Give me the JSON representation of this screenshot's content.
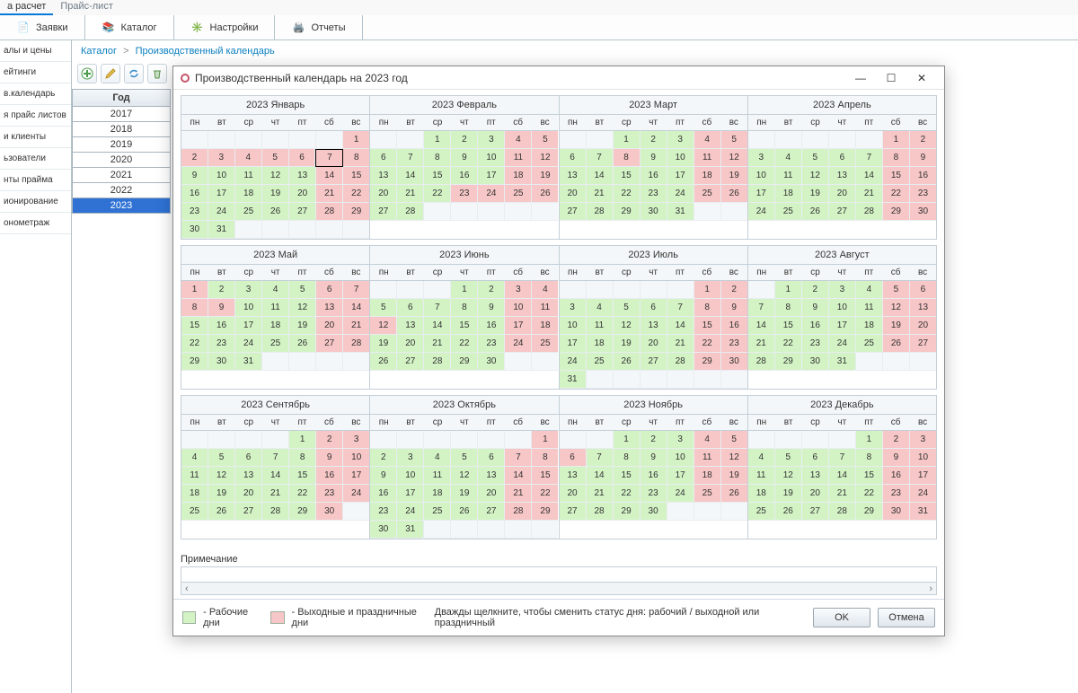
{
  "topTabs": [
    "а расчет",
    "Прайс-лист"
  ],
  "mainTabs": [
    {
      "label": "Заявки",
      "icon": "requests-icon"
    },
    {
      "label": "Каталог",
      "icon": "catalog-icon"
    },
    {
      "label": "Настройки",
      "icon": "settings-icon"
    },
    {
      "label": "Отчеты",
      "icon": "reports-icon"
    }
  ],
  "leftNav": [
    "алы и цены",
    "ейтинги",
    "в.календарь",
    "я прайс листов",
    "и клиенты",
    "ьзователи",
    "нты прайма",
    "ионирование",
    "онометраж"
  ],
  "breadcrumb": {
    "root": "Каталог",
    "page": "Производственный календарь"
  },
  "yearPanel": {
    "header": "Год",
    "years": [
      "2017",
      "2018",
      "2019",
      "2020",
      "2021",
      "2022",
      "2023"
    ],
    "selected": "2023"
  },
  "dialog": {
    "title": "Производственный календарь на 2023 год",
    "dow": [
      "пн",
      "вт",
      "ср",
      "чт",
      "пт",
      "сб",
      "вс"
    ],
    "colors": {
      "work": "#d3f3c5",
      "holiday": "#f7c6c6",
      "empty": "#f4f7f9"
    },
    "today": {
      "month": 0,
      "day": 7
    },
    "months": [
      {
        "title": "2023 Январь",
        "start": 6,
        "days": 31,
        "hol": [
          1,
          2,
          3,
          4,
          5,
          6,
          7,
          8,
          14,
          15,
          21,
          22,
          28,
          29
        ]
      },
      {
        "title": "2023 Февраль",
        "start": 2,
        "days": 28,
        "hol": [
          4,
          5,
          11,
          12,
          18,
          19,
          23,
          24,
          25,
          26
        ]
      },
      {
        "title": "2023 Март",
        "start": 2,
        "days": 31,
        "hol": [
          4,
          5,
          8,
          11,
          12,
          18,
          19,
          25,
          26
        ]
      },
      {
        "title": "2023 Апрель",
        "start": 5,
        "days": 30,
        "hol": [
          1,
          2,
          8,
          9,
          15,
          16,
          22,
          23,
          29,
          30
        ]
      },
      {
        "title": "2023 Май",
        "start": 0,
        "days": 31,
        "hol": [
          1,
          6,
          7,
          8,
          9,
          13,
          14,
          20,
          21,
          27,
          28
        ]
      },
      {
        "title": "2023 Июнь",
        "start": 3,
        "days": 30,
        "hol": [
          3,
          4,
          10,
          11,
          12,
          17,
          18,
          24,
          25
        ]
      },
      {
        "title": "2023 Июль",
        "start": 5,
        "days": 31,
        "hol": [
          1,
          2,
          8,
          9,
          15,
          16,
          22,
          23,
          29,
          30
        ]
      },
      {
        "title": "2023 Август",
        "start": 1,
        "days": 31,
        "hol": [
          5,
          6,
          12,
          13,
          19,
          20,
          26,
          27
        ]
      },
      {
        "title": "2023 Сентябрь",
        "start": 4,
        "days": 30,
        "hol": [
          2,
          3,
          9,
          10,
          16,
          17,
          23,
          24,
          30
        ]
      },
      {
        "title": "2023 Октябрь",
        "start": 6,
        "days": 31,
        "hol": [
          1,
          7,
          8,
          14,
          15,
          21,
          22,
          28,
          29
        ]
      },
      {
        "title": "2023 Ноябрь",
        "start": 2,
        "days": 30,
        "hol": [
          4,
          5,
          6,
          11,
          12,
          18,
          19,
          25,
          26
        ]
      },
      {
        "title": "2023 Декабрь",
        "start": 4,
        "days": 31,
        "hol": [
          2,
          3,
          9,
          10,
          16,
          17,
          23,
          24,
          30,
          31
        ]
      }
    ],
    "noteLabel": "Примечание",
    "legend": {
      "work": "- Рабочие дни",
      "holiday": "- Выходные и праздничные дни",
      "hint": "Дважды щелкните, чтобы сменить статус дня: рабочий / выходной или праздничный"
    },
    "buttons": {
      "ok": "OK",
      "cancel": "Отмена"
    }
  }
}
